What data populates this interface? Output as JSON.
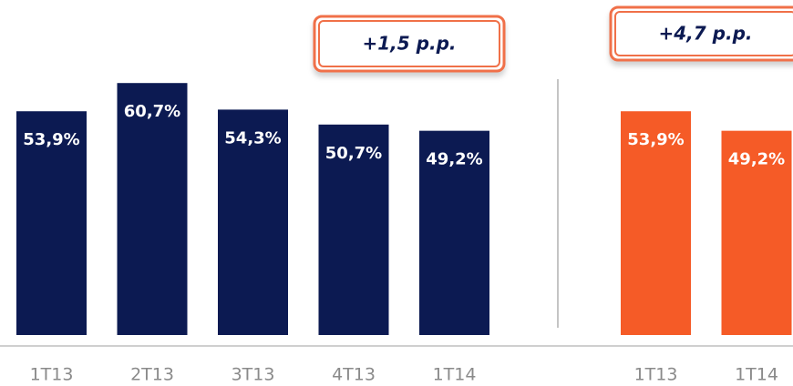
{
  "chart_data": [
    {
      "type": "bar",
      "annotation": "+1,5 p.p.",
      "color": "#0c1a52",
      "categories": [
        "1T13",
        "2T13",
        "3T13",
        "4T13",
        "1T14"
      ],
      "values": [
        53.9,
        60.7,
        54.3,
        50.7,
        49.2
      ],
      "value_labels": [
        "53,9%",
        "60,7%",
        "54,3%",
        "50,7%",
        "49,2%"
      ]
    },
    {
      "type": "bar",
      "annotation": "+4,7 p.p.",
      "color": "#f55b27",
      "categories": [
        "1T13",
        "1T14"
      ],
      "values": [
        53.9,
        49.2
      ],
      "value_labels": [
        "53,9%",
        "49,2%"
      ]
    }
  ]
}
